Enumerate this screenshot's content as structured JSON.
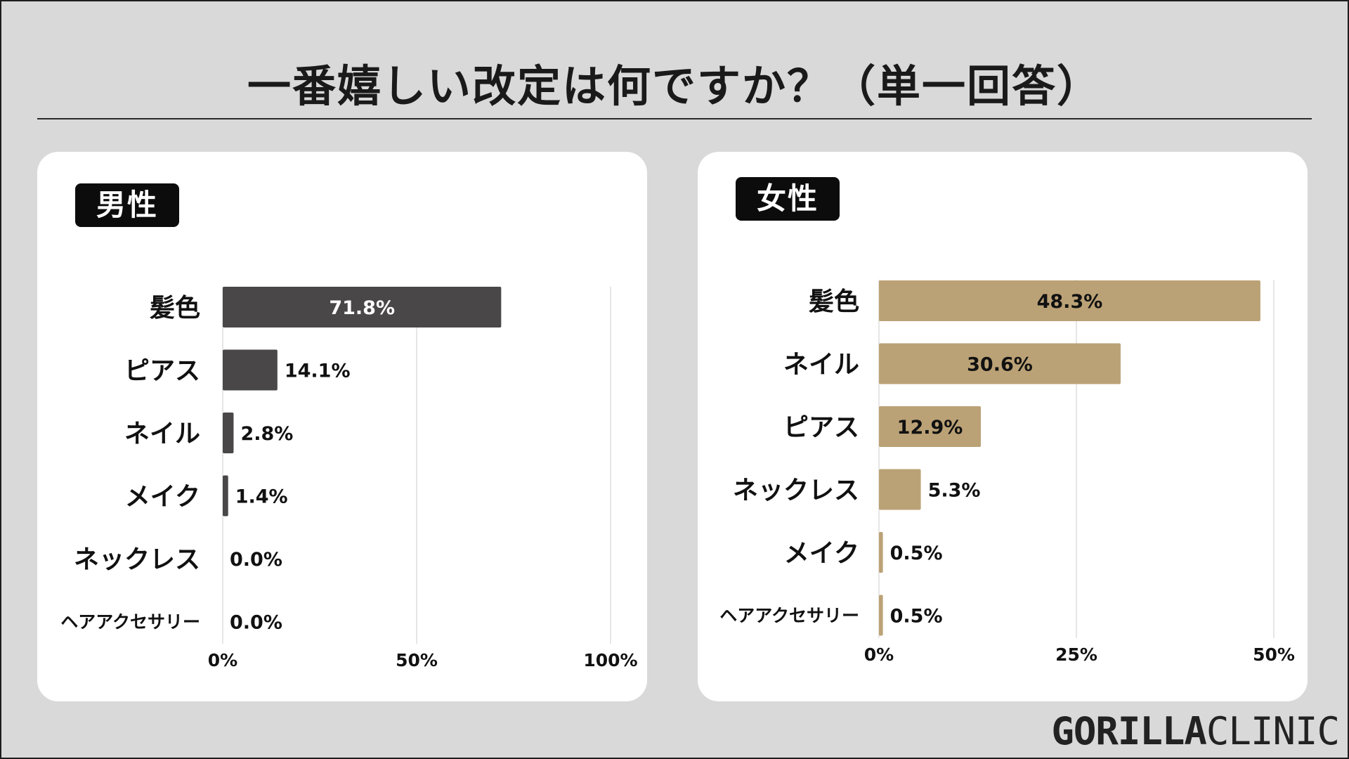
{
  "title": "一番嬉しい改定は何ですか？（単一回答）",
  "brand": {
    "part1": "GORILLA",
    "part2": "CLINIC"
  },
  "colors": {
    "male_bar": "#4a4748",
    "female_bar": "#bba276",
    "background": "#d9d9d9"
  },
  "chart_data": [
    {
      "type": "bar",
      "orientation": "horizontal",
      "title": "男性",
      "categories": [
        "髪色",
        "ピアス",
        "ネイル",
        "メイク",
        "ネックレス",
        "ヘアアクセサリー"
      ],
      "values": [
        71.8,
        14.1,
        2.8,
        1.4,
        0.0,
        0.0
      ],
      "value_labels": [
        "71.8%",
        "14.1%",
        "2.8%",
        "1.4%",
        "0.0%",
        "0.0%"
      ],
      "xlim": [
        0,
        100
      ],
      "xticks": [
        "0%",
        "50%",
        "100%"
      ],
      "grid": true
    },
    {
      "type": "bar",
      "orientation": "horizontal",
      "title": "女性",
      "categories": [
        "髪色",
        "ネイル",
        "ピアス",
        "ネックレス",
        "メイク",
        "ヘアアクセサリー"
      ],
      "values": [
        48.3,
        30.6,
        12.9,
        5.3,
        0.5,
        0.5
      ],
      "value_labels": [
        "48.3%",
        "30.6%",
        "12.9%",
        "5.3%",
        "0.5%",
        "0.5%"
      ],
      "xlim": [
        0,
        50
      ],
      "xticks": [
        "0%",
        "25%",
        "50%"
      ],
      "grid": true
    }
  ]
}
